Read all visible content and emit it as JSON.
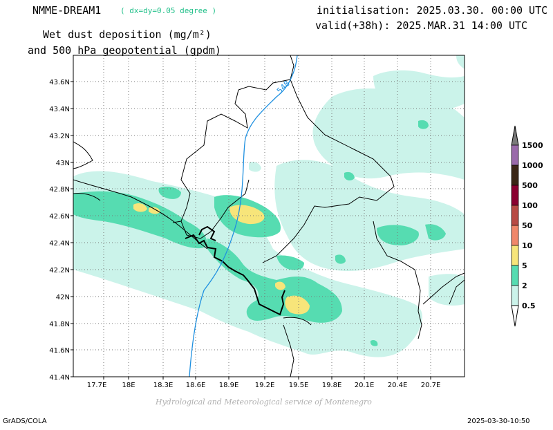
{
  "header": {
    "model_name": "NMME-DREAM1",
    "resolution": "( dx=dy=0.05 degree )",
    "variable_line1": "Wet dust deposition (mg/m²)",
    "variable_line2": "and 500 hPa geopotential (gpdm)",
    "initialisation": "initialisation: 2025.03.30. 00:00 UTC",
    "valid": "valid(+38h): 2025.MAR.31 14:00 UTC"
  },
  "map": {
    "lat_ticks": [
      "43.6N",
      "43.4N",
      "43.2N",
      "43N",
      "42.8N",
      "42.6N",
      "42.4N",
      "42.2N",
      "42N",
      "41.8N",
      "41.6N",
      "41.4N"
    ],
    "lon_ticks": [
      "17.7E",
      "18E",
      "18.3E",
      "18.6E",
      "18.9E",
      "19.2E",
      "19.5E",
      "19.8E",
      "20.1E",
      "20.4E",
      "20.7E"
    ],
    "contour_label": "548",
    "grid": true
  },
  "legend": {
    "levels": [
      {
        "label": "1500",
        "color": "#7a7a7a"
      },
      {
        "label": "1000",
        "color": "#9a6aaa"
      },
      {
        "label": "500",
        "color": "#3b2616"
      },
      {
        "label": "100",
        "color": "#8a0030"
      },
      {
        "label": "50",
        "color": "#b84a44"
      },
      {
        "label": "10",
        "color": "#f0876a"
      },
      {
        "label": "5",
        "color": "#f7e57a"
      },
      {
        "label": "2",
        "color": "#56dcb1"
      },
      {
        "label": "0.5",
        "color": "#cbf3ea"
      }
    ]
  },
  "footer": {
    "credit": "Hydrological and Meteorological service of Montenegro",
    "software": "GrADS/COLA",
    "timestamp": "2025-03-30-10:50"
  }
}
